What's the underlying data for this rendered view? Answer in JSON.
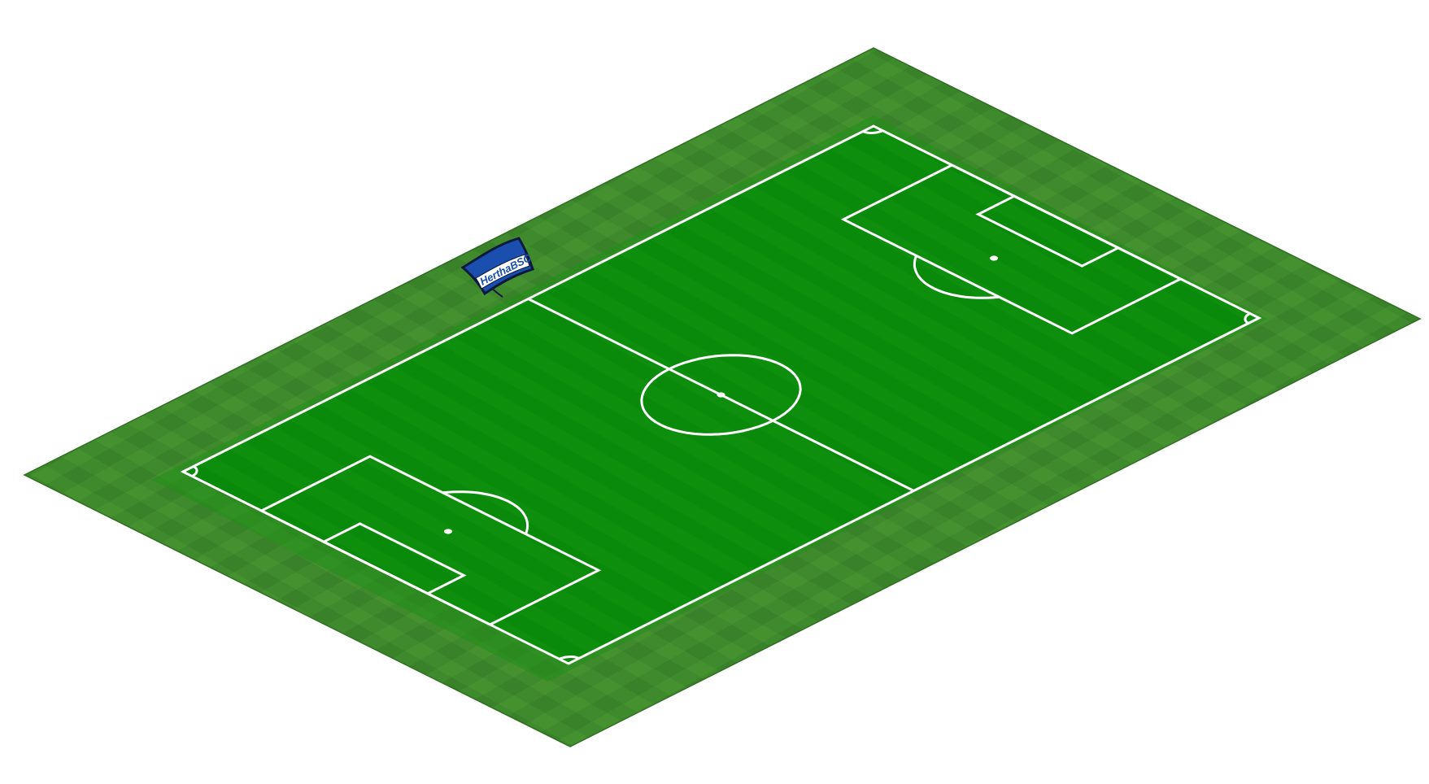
{
  "scene": {
    "type": "isometric-football-pitch",
    "colors": {
      "background": "#ffffff",
      "turf_outer": "#3f8a2c",
      "turf_outer_tile": "#4c9a34",
      "turf_outer_edge": "#2f6f22",
      "turf_mid": "#1a8a18",
      "pitch_fill": "#0a8a0a",
      "pitch_stripe": "#0f930f",
      "line_white": "#ffffff",
      "flag_blue": "#1a4fb0",
      "flag_white": "#ffffff",
      "flag_outline": "#0b1a3c"
    }
  },
  "flag": {
    "club_text": "HerthaBSC",
    "icon": "hertha-bsc-flag-icon"
  }
}
